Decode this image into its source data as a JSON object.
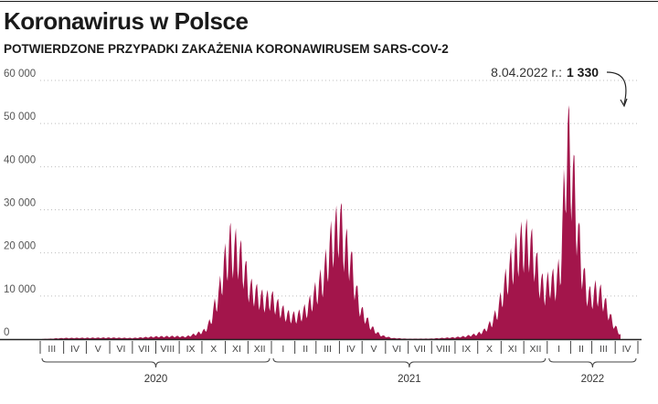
{
  "header": {
    "title": "Koronawirus w Polsce",
    "subtitle": "POTWIERDZONE PRZYPADKI ZAKAŻENIA KORONAWIRUSEM SARS-COV-2"
  },
  "colors": {
    "area": "#a3154b",
    "text": "#1a1a1a",
    "axis": "#444444",
    "grid": "#bdbdbd"
  },
  "chart_data": {
    "type": "area",
    "title": "Koronawirus w Polsce",
    "subtitle": "POTWIERDZONE PRZYPADKI ZAKAŻENIA KORONAWIRUSEM SARS-COV-2",
    "xlabel": "",
    "ylabel": "",
    "ylim": [
      0,
      60000
    ],
    "grid": "horizontal dotted",
    "y_ticks": [
      {
        "value": 0,
        "label": "0"
      },
      {
        "value": 10000,
        "label": "10 000"
      },
      {
        "value": 20000,
        "label": "20 000"
      },
      {
        "value": 30000,
        "label": "30 000"
      },
      {
        "value": 40000,
        "label": "40 000"
      },
      {
        "value": 50000,
        "label": "50 000"
      },
      {
        "value": 60000,
        "label": "60 000"
      }
    ],
    "months": [
      {
        "label": "III",
        "year": "2020"
      },
      {
        "label": "IV",
        "year": "2020"
      },
      {
        "label": "V",
        "year": "2020"
      },
      {
        "label": "VI",
        "year": "2020"
      },
      {
        "label": "VII",
        "year": "2020"
      },
      {
        "label": "VIII",
        "year": "2020"
      },
      {
        "label": "IX",
        "year": "2020"
      },
      {
        "label": "X",
        "year": "2020"
      },
      {
        "label": "XI",
        "year": "2020"
      },
      {
        "label": "XII",
        "year": "2020"
      },
      {
        "label": "I",
        "year": "2021"
      },
      {
        "label": "II",
        "year": "2021"
      },
      {
        "label": "III",
        "year": "2021"
      },
      {
        "label": "IV",
        "year": "2021"
      },
      {
        "label": "V",
        "year": "2021"
      },
      {
        "label": "VI",
        "year": "2021"
      },
      {
        "label": "VII",
        "year": "2021"
      },
      {
        "label": "VIII",
        "year": "2021"
      },
      {
        "label": "IX",
        "year": "2021"
      },
      {
        "label": "X",
        "year": "2021"
      },
      {
        "label": "XI",
        "year": "2021"
      },
      {
        "label": "XII",
        "year": "2021"
      },
      {
        "label": "I",
        "year": "2022"
      },
      {
        "label": "II",
        "year": "2022"
      },
      {
        "label": "III",
        "year": "2022"
      },
      {
        "label": "IV",
        "year": "2022"
      }
    ],
    "years": [
      {
        "label": "2020",
        "from_month": 0,
        "to_month": 9
      },
      {
        "label": "2021",
        "from_month": 10,
        "to_month": 21
      },
      {
        "label": "2022",
        "from_month": 22,
        "to_month": 25
      }
    ],
    "series": [
      {
        "points": [
          [
            "2020-03-01",
            0
          ],
          [
            "2020-04-01",
            300
          ],
          [
            "2020-05-01",
            350
          ],
          [
            "2020-06-01",
            400
          ],
          [
            "2020-07-01",
            300
          ],
          [
            "2020-08-01",
            700
          ],
          [
            "2020-08-25",
            800
          ],
          [
            "2020-09-10",
            700
          ],
          [
            "2020-09-25",
            1600
          ],
          [
            "2020-10-05",
            2500
          ],
          [
            "2020-10-12",
            5000
          ],
          [
            "2020-10-18",
            9500
          ],
          [
            "2020-10-24",
            13500
          ],
          [
            "2020-10-30",
            21000
          ],
          [
            "2020-11-03",
            23500
          ],
          [
            "2020-11-07",
            27500
          ],
          [
            "2020-11-12",
            25000
          ],
          [
            "2020-11-16",
            26000
          ],
          [
            "2020-11-22",
            23000
          ],
          [
            "2020-11-28",
            19000
          ],
          [
            "2020-12-03",
            14500
          ],
          [
            "2020-12-10",
            13500
          ],
          [
            "2020-12-17",
            12000
          ],
          [
            "2020-12-24",
            11000
          ],
          [
            "2020-12-31",
            12000
          ],
          [
            "2021-01-07",
            10000
          ],
          [
            "2021-01-14",
            8500
          ],
          [
            "2021-01-21",
            7000
          ],
          [
            "2021-01-28",
            6500
          ],
          [
            "2021-02-04",
            6500
          ],
          [
            "2021-02-11",
            7500
          ],
          [
            "2021-02-18",
            9000
          ],
          [
            "2021-02-25",
            12000
          ],
          [
            "2021-03-04",
            15000
          ],
          [
            "2021-03-11",
            18000
          ],
          [
            "2021-03-18",
            25000
          ],
          [
            "2021-03-24",
            30000
          ],
          [
            "2021-03-28",
            31000
          ],
          [
            "2021-04-01",
            35000
          ],
          [
            "2021-04-08",
            27000
          ],
          [
            "2021-04-15",
            24000
          ],
          [
            "2021-04-22",
            15000
          ],
          [
            "2021-04-29",
            8500
          ],
          [
            "2021-05-06",
            6000
          ],
          [
            "2021-05-13",
            3500
          ],
          [
            "2021-05-20",
            2000
          ],
          [
            "2021-05-27",
            1000
          ],
          [
            "2021-06-10",
            300
          ],
          [
            "2021-07-01",
            100
          ],
          [
            "2021-08-01",
            150
          ],
          [
            "2021-09-01",
            500
          ],
          [
            "2021-09-15",
            800
          ],
          [
            "2021-10-01",
            1500
          ],
          [
            "2021-10-10",
            2500
          ],
          [
            "2021-10-20",
            5000
          ],
          [
            "2021-10-28",
            8500
          ],
          [
            "2021-11-05",
            15000
          ],
          [
            "2021-11-12",
            20000
          ],
          [
            "2021-11-19",
            24000
          ],
          [
            "2021-11-26",
            27000
          ],
          [
            "2021-12-02",
            28000
          ],
          [
            "2021-12-08",
            28000
          ],
          [
            "2021-12-15",
            24000
          ],
          [
            "2021-12-22",
            17000
          ],
          [
            "2021-12-29",
            14000
          ],
          [
            "2022-01-05",
            17000
          ],
          [
            "2022-01-12",
            16000
          ],
          [
            "2022-01-18",
            20000
          ],
          [
            "2022-01-22",
            35000
          ],
          [
            "2022-01-26",
            53000
          ],
          [
            "2022-01-28",
            57500
          ],
          [
            "2022-02-01",
            51000
          ],
          [
            "2022-02-05",
            45000
          ],
          [
            "2022-02-09",
            35000
          ],
          [
            "2022-02-15",
            22000
          ],
          [
            "2022-02-22",
            14000
          ],
          [
            "2022-02-28",
            12000
          ],
          [
            "2022-03-07",
            14000
          ],
          [
            "2022-03-14",
            12500
          ],
          [
            "2022-03-21",
            9000
          ],
          [
            "2022-03-28",
            5000
          ],
          [
            "2022-04-04",
            2500
          ],
          [
            "2022-04-08",
            1330
          ]
        ]
      }
    ],
    "annotations": [
      {
        "date": "2022-04-08",
        "label_date": "8.04.2022 r.:",
        "label_value": "1 330",
        "value": 1330
      }
    ]
  }
}
